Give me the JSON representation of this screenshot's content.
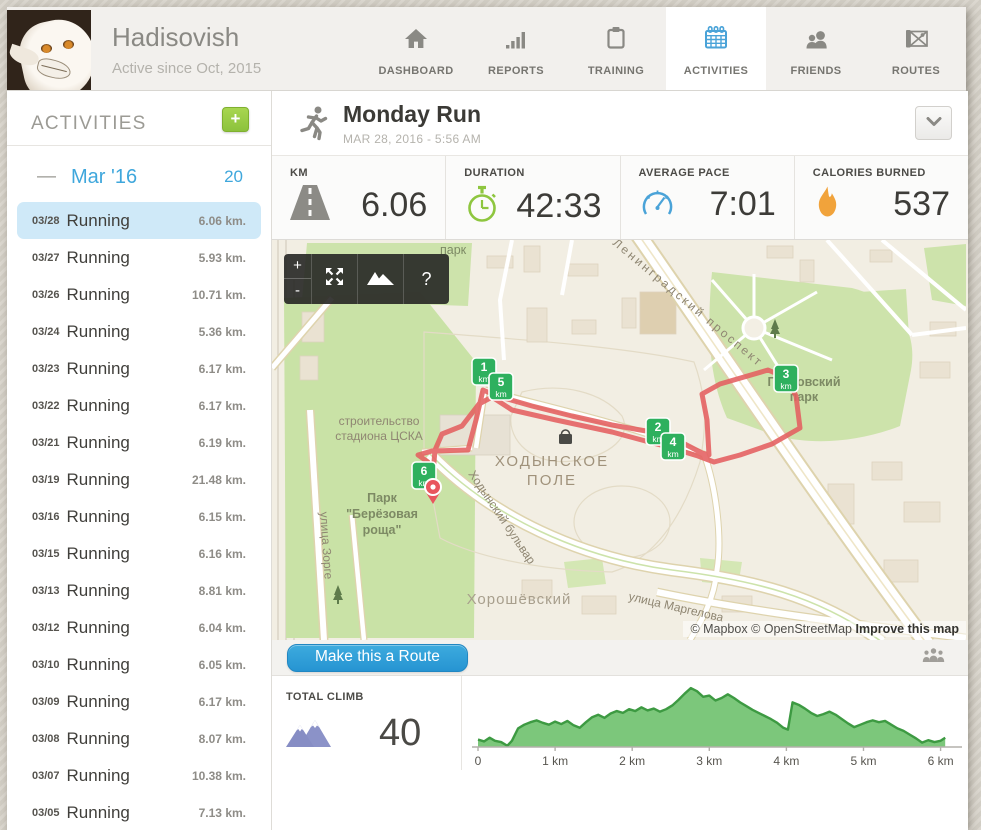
{
  "header": {
    "username": "Hadisovish",
    "subtitle": "Active since Oct, 2015",
    "nav": [
      {
        "label": "DASHBOARD",
        "icon": "home-icon",
        "active": false
      },
      {
        "label": "REPORTS",
        "icon": "bar-chart-icon",
        "active": false
      },
      {
        "label": "TRAINING",
        "icon": "clipboard-icon",
        "active": false
      },
      {
        "label": "ACTIVITIES",
        "icon": "calendar-icon",
        "active": true
      },
      {
        "label": "FRIENDS",
        "icon": "people-icon",
        "active": false
      },
      {
        "label": "ROUTES",
        "icon": "map-icon",
        "active": false
      }
    ]
  },
  "sidebar": {
    "title": "ACTIVITIES",
    "add_button": "+",
    "month": {
      "collapse": "—",
      "label": "Mar '16",
      "count": "20"
    },
    "items": [
      {
        "date": "03/28",
        "type": "Running",
        "distance": "6.06 km.",
        "active": true
      },
      {
        "date": "03/27",
        "type": "Running",
        "distance": "5.93 km.",
        "active": false
      },
      {
        "date": "03/26",
        "type": "Running",
        "distance": "10.71 km.",
        "active": false
      },
      {
        "date": "03/24",
        "type": "Running",
        "distance": "5.36 km.",
        "active": false
      },
      {
        "date": "03/23",
        "type": "Running",
        "distance": "6.17 km.",
        "active": false
      },
      {
        "date": "03/22",
        "type": "Running",
        "distance": "6.17 km.",
        "active": false
      },
      {
        "date": "03/21",
        "type": "Running",
        "distance": "6.19 km.",
        "active": false
      },
      {
        "date": "03/19",
        "type": "Running",
        "distance": "21.48 km.",
        "active": false
      },
      {
        "date": "03/16",
        "type": "Running",
        "distance": "6.15 km.",
        "active": false
      },
      {
        "date": "03/15",
        "type": "Running",
        "distance": "6.16 km.",
        "active": false
      },
      {
        "date": "03/13",
        "type": "Running",
        "distance": "8.81 km.",
        "active": false
      },
      {
        "date": "03/12",
        "type": "Running",
        "distance": "6.04 km.",
        "active": false
      },
      {
        "date": "03/10",
        "type": "Running",
        "distance": "6.05 km.",
        "active": false
      },
      {
        "date": "03/09",
        "type": "Running",
        "distance": "6.17 km.",
        "active": false
      },
      {
        "date": "03/08",
        "type": "Running",
        "distance": "8.07 km.",
        "active": false
      },
      {
        "date": "03/07",
        "type": "Running",
        "distance": "10.38 km.",
        "active": false
      },
      {
        "date": "03/05",
        "type": "Running",
        "distance": "7.13 km.",
        "active": false
      }
    ]
  },
  "activity": {
    "title": "Monday Run",
    "datetime": "MAR 28, 2016  -  5:56 AM"
  },
  "stats": [
    {
      "label": "KM",
      "value": "6.06",
      "icon": "road-icon"
    },
    {
      "label": "DURATION",
      "value": "42:33",
      "icon": "stopwatch-icon"
    },
    {
      "label": "AVERAGE PACE",
      "value": "7:01",
      "icon": "gauge-icon"
    },
    {
      "label": "CALORIES BURNED",
      "value": "537",
      "icon": "flame-icon"
    }
  ],
  "map": {
    "controls": {
      "zoom_in": "+",
      "zoom_out": "-",
      "help": "?"
    },
    "labels": {
      "park_small": "парк",
      "leningradsky": "Ленинградский проспект",
      "petrovsky_1": "Петровский",
      "petrovsky_2": "парк",
      "khodynka_1": "ХОДЫНСКОЕ",
      "khodynka_2": "ПОЛЕ",
      "stadium_1": "строительство",
      "stadium_2": "стадиона ЦСКА",
      "berezovaya_1": "Парк",
      "berezovaya_2": "\"Берёзовая",
      "berezovaya_3": "роща\"",
      "zorge": "улица Зорге",
      "khoroshevsky": "Хорошёвский",
      "margelova": "улица Маргелова",
      "bulvar": "Ходынский бульвар"
    },
    "markers": [
      {
        "num": "1",
        "unit": "km"
      },
      {
        "num": "5",
        "unit": "km"
      },
      {
        "num": "2",
        "unit": "km"
      },
      {
        "num": "4",
        "unit": "km"
      },
      {
        "num": "3",
        "unit": "km"
      },
      {
        "num": "6",
        "unit": "km"
      }
    ],
    "attribution": {
      "mapbox": "© Mapbox",
      "osm": "© OpenStreetMap",
      "improve": "Improve this map"
    }
  },
  "route_button": "Make this a Route",
  "climb": {
    "label": "TOTAL CLIMB",
    "value": "40"
  },
  "chart_data": {
    "type": "area",
    "grid": false,
    "xlim": [
      0,
      6.2
    ],
    "ylim": [
      0,
      100
    ],
    "ticks": [
      {
        "x": 0,
        "label": "0"
      },
      {
        "x": 1,
        "label": "1 km"
      },
      {
        "x": 2,
        "label": "2 km"
      },
      {
        "x": 3,
        "label": "3 km"
      },
      {
        "x": 4,
        "label": "4 km"
      },
      {
        "x": 5,
        "label": "5 km"
      },
      {
        "x": 6,
        "label": "6 km"
      }
    ],
    "x": [
      0,
      0.08,
      0.15,
      0.22,
      0.3,
      0.38,
      0.44,
      0.52,
      0.6,
      0.68,
      0.76,
      0.84,
      0.92,
      1.0,
      1.08,
      1.16,
      1.24,
      1.32,
      1.4,
      1.48,
      1.56,
      1.64,
      1.72,
      1.8,
      1.88,
      1.96,
      2.04,
      2.12,
      2.2,
      2.28,
      2.36,
      2.44,
      2.52,
      2.6,
      2.68,
      2.76,
      2.84,
      2.92,
      3.0,
      3.08,
      3.16,
      3.24,
      3.32,
      3.4,
      3.48,
      3.56,
      3.64,
      3.72,
      3.8,
      3.88,
      3.96,
      4.02,
      4.08,
      4.16,
      4.24,
      4.32,
      4.4,
      4.48,
      4.56,
      4.64,
      4.72,
      4.8,
      4.88,
      4.96,
      5.04,
      5.12,
      5.2,
      5.28,
      5.36,
      5.44,
      5.52,
      5.6,
      5.68,
      5.76,
      5.84,
      5.92,
      6.0,
      6.06
    ],
    "y_rel": [
      12,
      9,
      15,
      10,
      8,
      2,
      10,
      30,
      36,
      40,
      43,
      39,
      36,
      41,
      37,
      42,
      35,
      31,
      40,
      48,
      52,
      47,
      54,
      58,
      55,
      61,
      58,
      64,
      59,
      62,
      57,
      61,
      67,
      76,
      86,
      95,
      90,
      81,
      83,
      75,
      79,
      85,
      79,
      72,
      66,
      60,
      55,
      50,
      45,
      39,
      31,
      28,
      72,
      68,
      62,
      55,
      50,
      53,
      57,
      52,
      45,
      38,
      32,
      36,
      40,
      43,
      40,
      42,
      36,
      30,
      26,
      20,
      14,
      7,
      11,
      8,
      10,
      15
    ],
    "total_climb": 40,
    "colors": {
      "fill": "#7cc77b",
      "stroke": "#3d9a42",
      "axis": "#b3b1ab",
      "tick_text": "#57554f"
    }
  },
  "colors": {
    "accent_blue": "#3fa7dc",
    "add_green": "#8cc23c",
    "marker_green": "#2eb05e",
    "route_red": "#e45f60",
    "flame_orange": "#f1a33b",
    "stopwatch_green": "#8ec63f",
    "climb_purple": "#8b92c8",
    "button_blue": "#2e9fd9"
  }
}
